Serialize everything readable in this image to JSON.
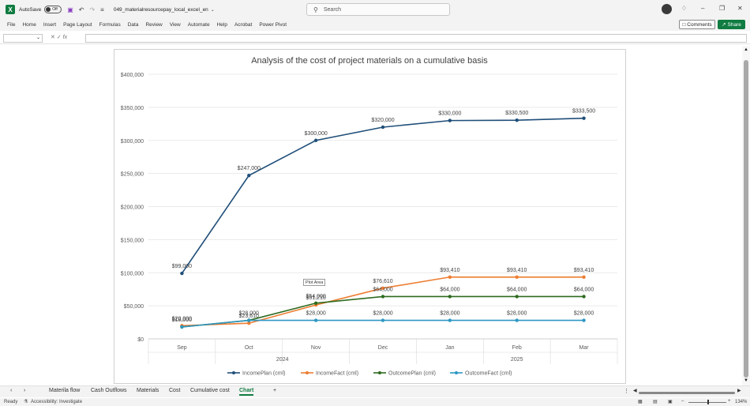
{
  "titlebar": {
    "autosave_label": "AutoSave",
    "autosave_state": "Off",
    "filename": "049_materialresourcepay_local_excel_en",
    "search_placeholder": "Search"
  },
  "menu": {
    "items": [
      "File",
      "Home",
      "Insert",
      "Page Layout",
      "Formulas",
      "Data",
      "Review",
      "View",
      "Automate",
      "Help",
      "Acrobat",
      "Power Pivot"
    ],
    "comments_label": "Comments",
    "share_label": "Share"
  },
  "chart_data": {
    "type": "line",
    "title": "Analysis of the cost of project materials on a cumulative basis",
    "categories": [
      "Sep",
      "Oct",
      "Nov",
      "Dec",
      "Jan",
      "Feb",
      "Mar"
    ],
    "year_labels": [
      "2024",
      "2025"
    ],
    "ylim": [
      0,
      400000
    ],
    "yticks": [
      "$0",
      "$50,000",
      "$100,000",
      "$150,000",
      "$200,000",
      "$250,000",
      "$300,000",
      "$350,000",
      "$400,000"
    ],
    "grid": true,
    "legend_position": "bottom",
    "series": [
      {
        "name": "IncomePlan (cml)",
        "color": "#1f4e79",
        "values": [
          99000,
          247000,
          300000,
          320000,
          330000,
          330500,
          333500
        ],
        "labels": [
          "$99,000",
          "$247,000",
          "$300,000",
          "$320,000",
          "$330,000",
          "$330,500",
          "$333,500"
        ]
      },
      {
        "name": "IncomeFact (cml)",
        "color": "#ed7d31",
        "values": [
          20000,
          23610,
          51210,
          76610,
          93410,
          93410,
          93410
        ],
        "labels": [
          "$20,000",
          "$23,610",
          "$51,210",
          "$76,610",
          "$93,410",
          "$93,410",
          "$93,410"
        ]
      },
      {
        "name": "OutcomePlan (cml)",
        "color": "#2e6b1f",
        "values": [
          18000,
          28000,
          54000,
          64000,
          64000,
          64000,
          64000
        ],
        "labels": [
          "$18,000",
          "$28,000",
          "$54,000",
          "$64,000",
          "$64,000",
          "$64,000",
          "$64,000"
        ]
      },
      {
        "name": "OutcomeFact (cml)",
        "color": "#2e97c4",
        "values": [
          18000,
          28000,
          28000,
          28000,
          28000,
          28000,
          28000
        ],
        "labels": [
          "",
          "",
          "$28,000",
          "$28,000",
          "$28,000",
          "$28,000",
          "$28,000"
        ]
      }
    ],
    "tooltip": "Plot Area"
  },
  "sheets": {
    "tabs": [
      "Materila flow",
      "Cash Outflows",
      "Materials",
      "Cost",
      "Cumulative cost",
      "Chart"
    ],
    "active": "Chart"
  },
  "status": {
    "ready": "Ready",
    "accessibility": "Accessibility: Investigate",
    "zoom": "134%"
  }
}
